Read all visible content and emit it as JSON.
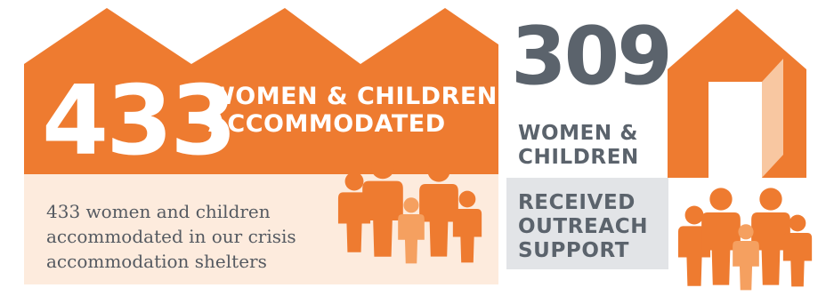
{
  "colors": {
    "orange": "#EE7B30",
    "light_orange": "#F5A060",
    "peach_panel": "#FDEBDD",
    "door_peach": "#F8C7A1",
    "grey_panel": "#E2E4E7",
    "grey_text": "#5B636C",
    "body_text": "#555A61"
  },
  "left_panel": {
    "number": "433",
    "heading_line1": "WOMEN & CHILDREN",
    "heading_line2": "ACCOMMODATED",
    "description_line1": "433 women and children",
    "description_line2": "accommodated in our crisis",
    "description_line3": "accommodation shelters",
    "icon": "family-group-icon"
  },
  "right_panel": {
    "number": "309",
    "sub_line1": "WOMEN &",
    "sub_line2": "CHILDREN",
    "outreach_line1": "RECEIVED",
    "outreach_line2": "OUTREACH",
    "outreach_line3": "SUPPORT",
    "house_icon": "house-open-door-icon",
    "people_icon": "family-group-icon"
  }
}
